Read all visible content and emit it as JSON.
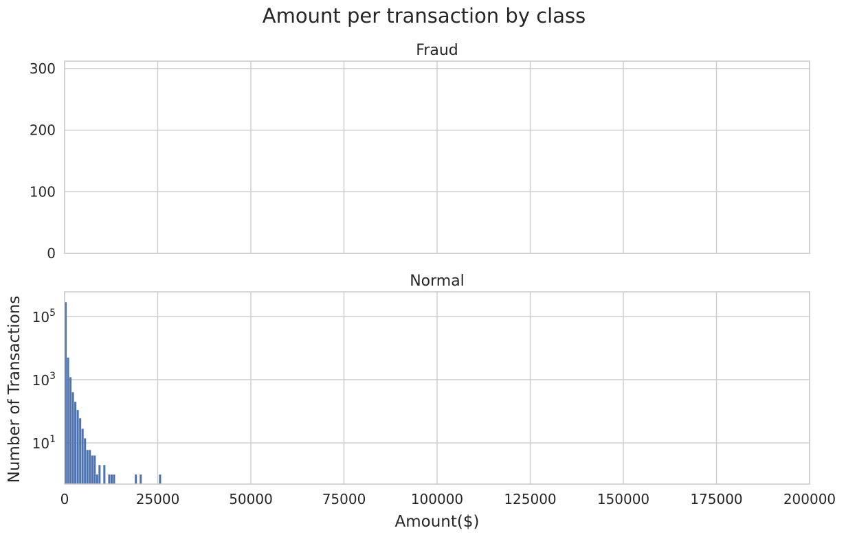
{
  "title": "Amount per transaction by class",
  "xlabel": "Amount($)",
  "ylabel": "Number of Transactions",
  "colors": {
    "bar": "#4c72b0",
    "grid": "#cccccc",
    "text": "#262626",
    "background": "#ffffff"
  },
  "chart_data": [
    {
      "type": "bar",
      "title": "Fraud",
      "xlim": [
        0,
        200000
      ],
      "ylim": [
        0,
        312
      ],
      "yscale": "linear",
      "grid": true,
      "x_ticks": [
        "0",
        "25000",
        "50000",
        "75000",
        "100000",
        "125000",
        "150000",
        "175000",
        "200000"
      ],
      "y_ticks": [
        {
          "value": 0,
          "label": "0"
        },
        {
          "value": 100,
          "label": "100"
        },
        {
          "value": 200,
          "label": "200"
        },
        {
          "value": 300,
          "label": "300"
        }
      ],
      "bins": []
    },
    {
      "type": "bar",
      "title": "Normal",
      "xlim": [
        0,
        200000
      ],
      "ylim": [
        0.5,
        600000
      ],
      "yscale": "log",
      "grid": true,
      "x_ticks": [
        "0",
        "25000",
        "50000",
        "75000",
        "100000",
        "125000",
        "150000",
        "175000",
        "200000"
      ],
      "y_ticks": [
        {
          "value": 10,
          "base": "10",
          "exp": "1"
        },
        {
          "value": 1000,
          "base": "10",
          "exp": "3"
        },
        {
          "value": 100000,
          "base": "10",
          "exp": "5"
        }
      ],
      "bin_width": 650,
      "bins": [
        {
          "x": 0,
          "count": 280000
        },
        {
          "x": 650,
          "count": 5000
        },
        {
          "x": 1300,
          "count": 1200
        },
        {
          "x": 1950,
          "count": 400
        },
        {
          "x": 2600,
          "count": 200
        },
        {
          "x": 3250,
          "count": 110
        },
        {
          "x": 3900,
          "count": 60
        },
        {
          "x": 4550,
          "count": 28
        },
        {
          "x": 5200,
          "count": 14
        },
        {
          "x": 5850,
          "count": 6
        },
        {
          "x": 6500,
          "count": 6
        },
        {
          "x": 7150,
          "count": 4
        },
        {
          "x": 7800,
          "count": 4
        },
        {
          "x": 8450,
          "count": 1
        },
        {
          "x": 9100,
          "count": 2
        },
        {
          "x": 10400,
          "count": 2
        },
        {
          "x": 11700,
          "count": 1
        },
        {
          "x": 12350,
          "count": 1
        },
        {
          "x": 13000,
          "count": 1
        },
        {
          "x": 18850,
          "count": 1
        },
        {
          "x": 20150,
          "count": 1
        },
        {
          "x": 25350,
          "count": 1
        }
      ]
    }
  ]
}
